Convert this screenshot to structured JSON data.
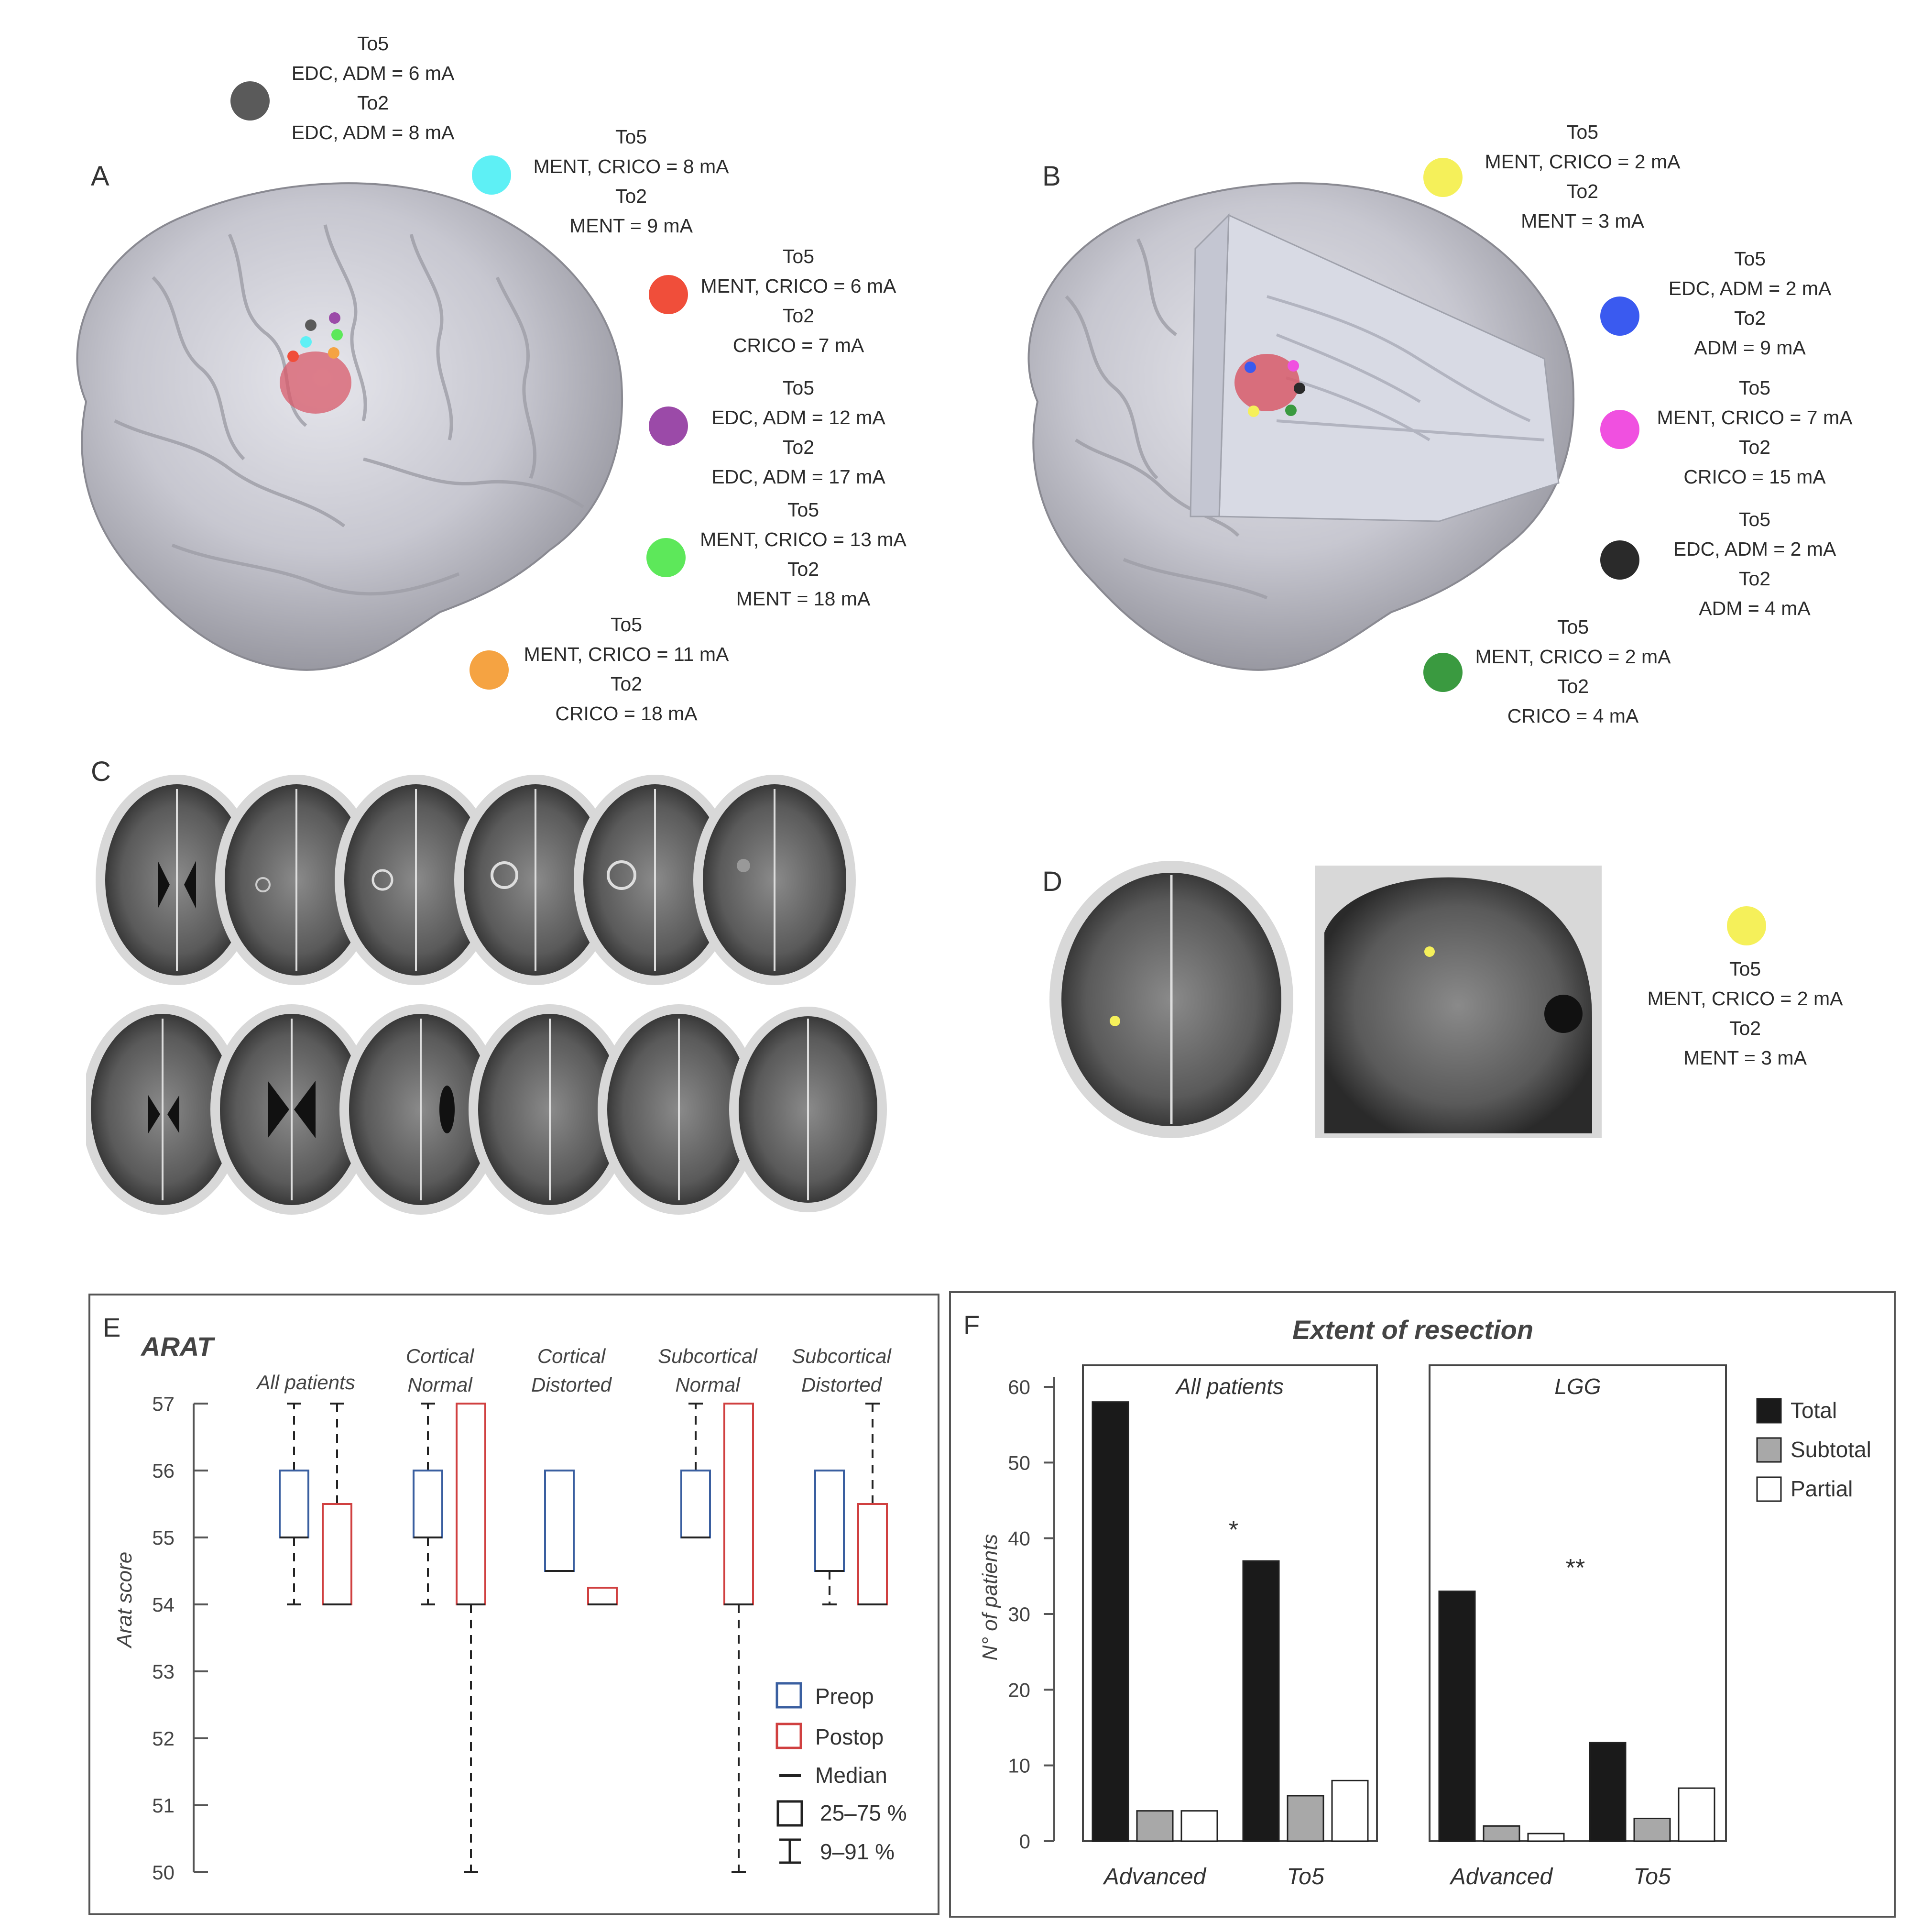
{
  "panels": {
    "A": "A",
    "B": "B",
    "C": "C",
    "D": "D",
    "E": "E",
    "F": "F"
  },
  "colors": {
    "gray": "#5a5a5a",
    "cyan": "#5ef0f5",
    "red": "#f04e3a",
    "purple": "#9b4aa8",
    "green": "#5de85a",
    "orange": "#f5a342",
    "yellow": "#f5f05a",
    "blue": "#3a5af0",
    "magenta": "#f050e0",
    "black": "#2a2a2a",
    "dark_green": "#3a9a40",
    "preop": "#3a5fa0",
    "postop": "#d04040"
  },
  "panel_a": [
    {
      "line1": "To5",
      "line2": "EDC, ADM = 6 mA",
      "line3": "To2",
      "line4": "EDC, ADM = 8 mA",
      "color": "gray"
    },
    {
      "line1": "To5",
      "line2": "MENT, CRICO = 8 mA",
      "line3": "To2",
      "line4": "MENT = 9 mA",
      "color": "cyan"
    },
    {
      "line1": "To5",
      "line2": "MENT, CRICO = 6 mA",
      "line3": "To2",
      "line4": "CRICO = 7 mA",
      "color": "red"
    },
    {
      "line1": "To5",
      "line2": "EDC, ADM = 12 mA",
      "line3": "To2",
      "line4": "EDC, ADM = 17 mA",
      "color": "purple"
    },
    {
      "line1": "To5",
      "line2": "MENT, CRICO = 13 mA",
      "line3": "To2",
      "line4": "MENT = 18 mA",
      "color": "green"
    },
    {
      "line1": "To5",
      "line2": "MENT, CRICO = 11 mA",
      "line3": "To2",
      "line4": "CRICO = 18 mA",
      "color": "orange"
    }
  ],
  "panel_b": [
    {
      "line1": "To5",
      "line2": "MENT, CRICO = 2 mA",
      "line3": "To2",
      "line4": "MENT = 3 mA",
      "color": "yellow"
    },
    {
      "line1": "To5",
      "line2": "EDC, ADM = 2 mA",
      "line3": "To2",
      "line4": "ADM = 9 mA",
      "color": "blue"
    },
    {
      "line1": "To5",
      "line2": "MENT, CRICO = 7 mA",
      "line3": "To2",
      "line4": "CRICO = 15 mA",
      "color": "magenta"
    },
    {
      "line1": "To5",
      "line2": "EDC, ADM = 2 mA",
      "line3": "To2",
      "line4": "ADM = 4 mA",
      "color": "black"
    },
    {
      "line1": "To5",
      "line2": "MENT, CRICO = 2 mA",
      "line3": "To2",
      "line4": "CRICO = 4 mA",
      "color": "dark_green"
    }
  ],
  "panel_d": {
    "line1": "To5",
    "line2": "MENT, CRICO = 2 mA",
    "line3": "To2",
    "line4": "MENT = 3 mA",
    "color": "yellow"
  },
  "chart_data": [
    {
      "type": "box",
      "title": "ARAT",
      "ylabel": "Arat score",
      "ylim": [
        50,
        57
      ],
      "yticks": [
        "57",
        "56",
        "55",
        "54",
        "53",
        "52",
        "51",
        "50"
      ],
      "groups": [
        {
          "label1": "All patients",
          "label2": "",
          "preop": {
            "whisker_low": 54,
            "q1": 55,
            "median": 55,
            "q3": 56,
            "whisker_high": 57
          },
          "postop": {
            "whisker_low": 54,
            "q1": 54,
            "median": 54,
            "q3": 55.5,
            "whisker_high": 57
          }
        },
        {
          "label1": "Cortical",
          "label2": "Normal",
          "preop": {
            "whisker_low": 54,
            "q1": 55,
            "median": 55,
            "q3": 56,
            "whisker_high": 57
          },
          "postop": {
            "whisker_low": 50,
            "q1": 54,
            "median": 54,
            "q3": 57,
            "whisker_high": 57
          }
        },
        {
          "label1": "Cortical",
          "label2": "Distorted",
          "preop": {
            "whisker_low": 54.5,
            "q1": 54.5,
            "median": 54.5,
            "q3": 56,
            "whisker_high": 56
          },
          "postop": {
            "whisker_low": 54,
            "q1": 54,
            "median": 54,
            "q3": 54.25,
            "whisker_high": 54.25
          }
        },
        {
          "label1": "Subcortical",
          "label2": "Normal",
          "preop": {
            "whisker_low": 55,
            "q1": 55,
            "median": 55,
            "q3": 56,
            "whisker_high": 57
          },
          "postop": {
            "whisker_low": 50,
            "q1": 54,
            "median": 54,
            "q3": 57,
            "whisker_high": 57
          }
        },
        {
          "label1": "Subcortical",
          "label2": "Distorted",
          "preop": {
            "whisker_low": 54,
            "q1": 54.5,
            "median": 54.5,
            "q3": 56,
            "whisker_high": 56
          },
          "postop": {
            "whisker_low": 54,
            "q1": 54,
            "median": 54,
            "q3": 55.5,
            "whisker_high": 57
          }
        }
      ],
      "legend": {
        "preop": "Preop",
        "postop": "Postop",
        "median": "Median",
        "iqr": "25–75 %",
        "range": "9–91 %"
      }
    },
    {
      "type": "bar",
      "title": "Extent of resection",
      "ylabel": "N° of patients",
      "ylim": [
        0,
        60
      ],
      "yticks": [
        "60",
        "50",
        "40",
        "30",
        "20",
        "10",
        "0"
      ],
      "series_names": [
        "Total",
        "Subtotal",
        "Partial"
      ],
      "series_colors": [
        "#1a1a1a",
        "#a8a8a8",
        "#ffffff"
      ],
      "subplots": [
        {
          "title": "All patients",
          "categories": [
            "Advanced",
            "To5"
          ],
          "values": [
            [
              58,
              4,
              4
            ],
            [
              37,
              6,
              8
            ]
          ],
          "significance": "*"
        },
        {
          "title": "LGG",
          "categories": [
            "Advanced",
            "To5"
          ],
          "values": [
            [
              33,
              2,
              1
            ],
            [
              13,
              3,
              7
            ]
          ],
          "significance": "**"
        }
      ]
    }
  ]
}
